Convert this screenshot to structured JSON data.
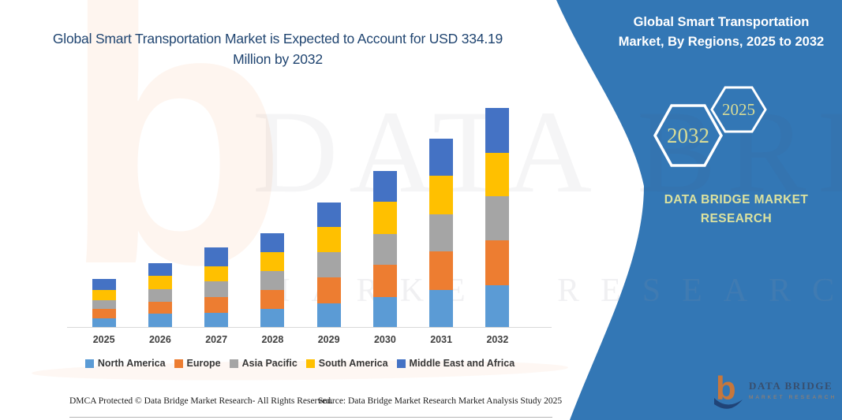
{
  "title": "Global Smart Transportation Market is Expected to Account for USD 334.19 Million by 2032",
  "side_panel": {
    "title": "Global Smart Transportation Market, By Regions, 2025 to 2032",
    "hexagons": [
      "2032",
      "2025"
    ],
    "brand": "DATA BRIDGE MARKET RESEARCH",
    "panel_color": "#3377b5",
    "accent_text_color": "#d8dc96"
  },
  "watermark": {
    "big_letter": "b",
    "line1": "DATA BRIDGE",
    "line2": "MARKET RESEARCH"
  },
  "logo": {
    "letter": "b",
    "name": "DATA BRIDGE",
    "tagline": "MARKET RESEARCH"
  },
  "footer": {
    "left": "DMCA Protected © Data Bridge Market Research-  All Rights Reserved.",
    "source": "Source: Data Bridge Market Research  Market Analysis Study 2025"
  },
  "chart_data": {
    "type": "bar",
    "stacked": true,
    "title": "Global Smart Transportation Market, By Regions, 2025 to 2032",
    "unit": "USD Million",
    "categories": [
      "2025",
      "2026",
      "2027",
      "2028",
      "2029",
      "2030",
      "2031",
      "2032"
    ],
    "series": [
      {
        "name": "North America",
        "color": "#5B9BD5",
        "values": [
          13,
          20,
          22,
          28,
          36,
          46,
          56,
          64.19
        ]
      },
      {
        "name": "Europe",
        "color": "#ED7D31",
        "values": [
          15,
          18,
          24,
          29,
          40,
          49,
          60,
          68
        ]
      },
      {
        "name": "Asia Pacific",
        "color": "#A5A5A5",
        "values": [
          13,
          20,
          24,
          29,
          38,
          47,
          56,
          67
        ]
      },
      {
        "name": "South America",
        "color": "#FFC000",
        "values": [
          16,
          20,
          23,
          28,
          39,
          49,
          59,
          67
        ]
      },
      {
        "name": "Middle East and Africa",
        "color": "#4472C4",
        "values": [
          16,
          19,
          28,
          29,
          37,
          47,
          56,
          68
        ]
      }
    ],
    "totals": [
      73,
      97,
      121,
      143,
      190,
      238,
      287,
      334.19
    ],
    "ylim": [
      0,
      335
    ],
    "grid": false,
    "legend_position": "bottom",
    "note": "Segment values estimated from bar heights; 2032 total of USD 334.19 Million stated in chart title."
  }
}
